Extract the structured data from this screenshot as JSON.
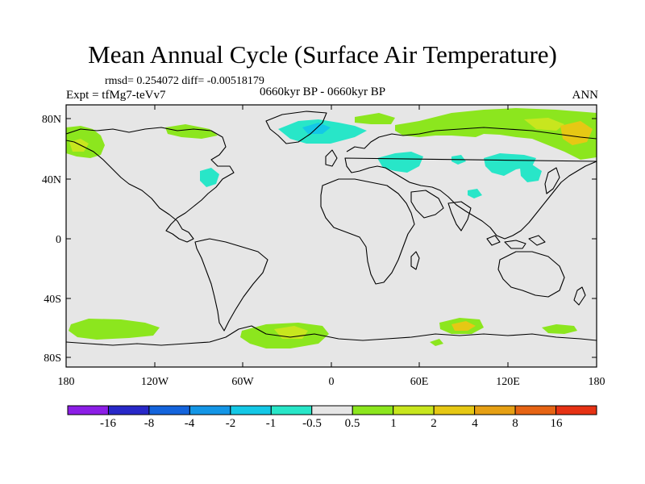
{
  "header": {
    "title": "Mean Annual Cycle (Surface Air Temperature)",
    "stats": "rmsd= 0.254072 diff= -0.00518179",
    "experiment": "Expt = tfMg7-teVv7",
    "period": "0660kyr BP - 0660kyr BP",
    "season": "ANN"
  },
  "axes": {
    "lat_labels": [
      "80N",
      "40N",
      "0",
      "40S",
      "80S"
    ],
    "lon_labels": [
      "180",
      "120W",
      "60W",
      "0",
      "60E",
      "120E",
      "180"
    ]
  },
  "colorbar": {
    "colors": [
      "#8c1ee6",
      "#2828c8",
      "#1464dc",
      "#1496e6",
      "#14c8e6",
      "#28e6c8",
      "#e6e6e6",
      "#8ce61e",
      "#c8e61e",
      "#e6c814",
      "#e6a014",
      "#e66414",
      "#e63214"
    ],
    "labels": [
      "-16",
      "-8",
      "-4",
      "-2",
      "-1",
      "-0.5",
      "0.5",
      "1",
      "2",
      "4",
      "8",
      "16"
    ]
  },
  "colors": {
    "background": "#e6e6e6",
    "cyan": "#28e6c8",
    "blue": "#14c8e6",
    "green": "#8ce61e",
    "yellow": "#c8e61e",
    "gold": "#e6c814"
  }
}
